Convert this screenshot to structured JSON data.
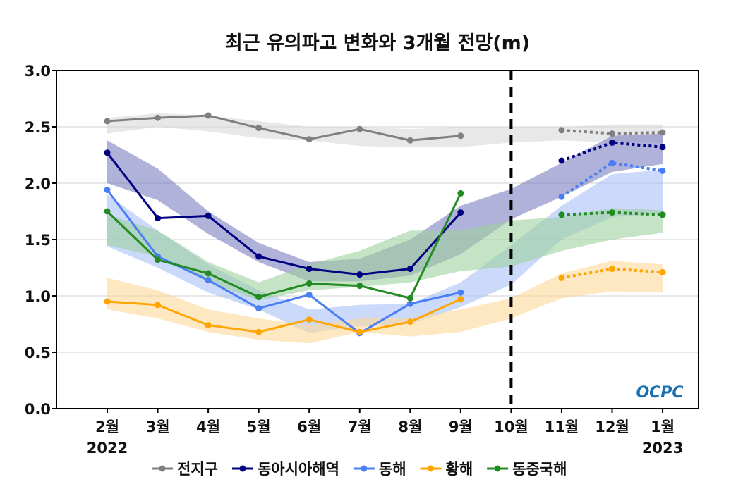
{
  "chart_data": {
    "type": "line",
    "title": "최근 유의파고 변화와 3개월 전망(m)",
    "categories": [
      "2월",
      "3월",
      "4월",
      "5월",
      "6월",
      "7월",
      "8월",
      "9월",
      "10월",
      "11월",
      "12월",
      "1월"
    ],
    "year_labels": [
      {
        "category_index": 0,
        "label": "2022"
      },
      {
        "category_index": 11,
        "label": "2023"
      }
    ],
    "ylim": [
      0,
      3.0
    ],
    "yticks": [
      "0.0",
      "0.5",
      "1.0",
      "1.5",
      "2.0",
      "2.5",
      "3.0"
    ],
    "grid": true,
    "legend_position": "bottom",
    "forecast_divider_category": "10월",
    "logo": "OCPC",
    "series": [
      {
        "name": "전지구",
        "color": "#808080",
        "band_color": "#d9d9d9",
        "observed": [
          2.55,
          2.58,
          2.6,
          2.49,
          2.39,
          2.48,
          2.38,
          2.42,
          null,
          null,
          null,
          null
        ],
        "forecast": [
          null,
          null,
          null,
          null,
          null,
          null,
          null,
          null,
          null,
          2.47,
          2.44,
          2.45
        ],
        "band_upper": [
          2.58,
          2.62,
          2.6,
          2.55,
          2.5,
          2.5,
          2.48,
          2.5,
          2.5,
          2.5,
          2.52,
          2.52
        ],
        "band_lower": [
          2.44,
          2.5,
          2.46,
          2.4,
          2.38,
          2.33,
          2.32,
          2.32,
          2.36,
          2.38,
          2.36,
          2.36
        ]
      },
      {
        "name": "동아시아해역",
        "color": "#000080",
        "band_color": "#7b7fc0",
        "observed": [
          2.27,
          1.69,
          1.71,
          1.35,
          1.24,
          1.19,
          1.24,
          1.74,
          null,
          null,
          null,
          null
        ],
        "forecast": [
          null,
          null,
          null,
          null,
          null,
          null,
          null,
          null,
          null,
          2.2,
          2.36,
          2.32
        ],
        "band_upper": [
          2.38,
          2.13,
          1.75,
          1.47,
          1.3,
          1.33,
          1.5,
          1.8,
          1.95,
          2.18,
          2.42,
          2.44
        ],
        "band_lower": [
          2.0,
          1.85,
          1.55,
          1.3,
          1.13,
          1.13,
          1.18,
          1.37,
          1.68,
          1.88,
          2.1,
          2.17
        ]
      },
      {
        "name": "동해",
        "color": "#4a7ef5",
        "band_color": "#a9bff8",
        "observed": [
          1.94,
          1.35,
          1.14,
          0.89,
          1.01,
          0.67,
          0.93,
          1.03,
          null,
          null,
          null,
          null
        ],
        "forecast": [
          null,
          null,
          null,
          null,
          null,
          null,
          null,
          null,
          null,
          1.88,
          2.18,
          2.11
        ],
        "band_upper": [
          1.9,
          1.58,
          1.28,
          1.05,
          0.88,
          0.92,
          0.93,
          1.12,
          1.45,
          1.8,
          2.08,
          2.12
        ],
        "band_lower": [
          1.44,
          1.25,
          1.03,
          0.88,
          0.67,
          0.73,
          0.75,
          0.9,
          1.1,
          1.5,
          1.7,
          1.73
        ]
      },
      {
        "name": "황해",
        "color": "#ffa500",
        "band_color": "#fdd99a",
        "observed": [
          0.95,
          0.92,
          0.74,
          0.68,
          0.79,
          0.68,
          0.77,
          0.97,
          null,
          null,
          null,
          null
        ],
        "forecast": [
          null,
          null,
          null,
          null,
          null,
          null,
          null,
          null,
          null,
          1.16,
          1.24,
          1.21
        ],
        "band_upper": [
          1.16,
          1.05,
          0.88,
          0.8,
          0.74,
          0.8,
          0.8,
          0.88,
          0.98,
          1.2,
          1.31,
          1.28
        ],
        "band_lower": [
          0.88,
          0.8,
          0.68,
          0.61,
          0.58,
          0.68,
          0.64,
          0.68,
          0.8,
          0.98,
          1.04,
          1.03
        ]
      },
      {
        "name": "동중국해",
        "color": "#228b22",
        "band_color": "#9fd09f",
        "observed": [
          1.75,
          1.32,
          1.2,
          0.99,
          1.11,
          1.09,
          0.98,
          1.91,
          null,
          null,
          null,
          null
        ],
        "forecast": [
          null,
          null,
          null,
          null,
          null,
          null,
          null,
          null,
          null,
          1.72,
          1.74,
          1.72
        ],
        "band_upper": [
          1.72,
          1.58,
          1.3,
          1.12,
          1.28,
          1.4,
          1.58,
          1.58,
          1.67,
          1.7,
          1.78,
          1.76
        ],
        "band_lower": [
          1.45,
          1.35,
          1.12,
          0.96,
          1.05,
          1.08,
          1.12,
          1.22,
          1.26,
          1.4,
          1.5,
          1.56
        ]
      }
    ]
  }
}
